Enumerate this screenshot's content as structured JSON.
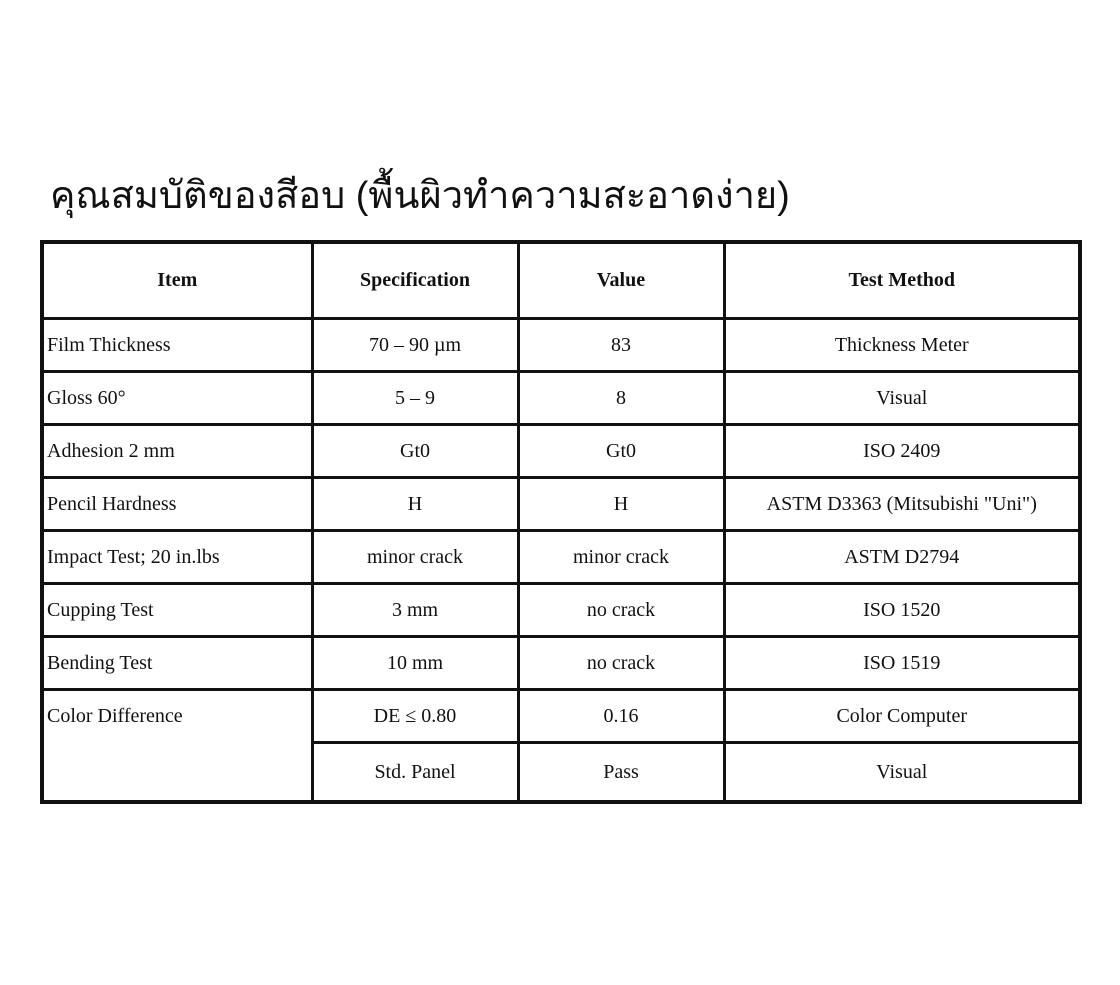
{
  "title": "คุณสมบัติของสีอบ (พื้นผิวทำความสะอาดง่าย)",
  "table": {
    "headers": [
      "Item",
      "Specification",
      "Value",
      "Test Method"
    ],
    "rows": [
      {
        "item": "Film Thickness",
        "spec": "70 – 90 µm",
        "value": "83",
        "method": "Thickness Meter"
      },
      {
        "item": "Gloss 60°",
        "spec": "5 – 9",
        "value": "8",
        "method": "Visual"
      },
      {
        "item": "Adhesion 2 mm",
        "spec": "Gt0",
        "value": "Gt0",
        "method": "ISO 2409"
      },
      {
        "item": "Pencil Hardness",
        "spec": "H",
        "value": "H",
        "method": "ASTM D3363 (Mitsubishi \"Uni\")"
      },
      {
        "item": "Impact Test; 20 in.lbs",
        "spec": "minor crack",
        "value": "minor crack",
        "method": "ASTM D2794"
      },
      {
        "item": "Cupping Test",
        "spec": "3 mm",
        "value": "no crack",
        "method": "ISO 1520"
      },
      {
        "item": "Bending Test",
        "spec": "10 mm",
        "value": "no crack",
        "method": "ISO 1519"
      },
      {
        "item": "Color Difference",
        "spec": "DE ≤ 0.80",
        "value": "0.16",
        "method": "Color Computer"
      },
      {
        "item": "",
        "spec": "Std. Panel",
        "value": "Pass",
        "method": "Visual"
      }
    ]
  }
}
